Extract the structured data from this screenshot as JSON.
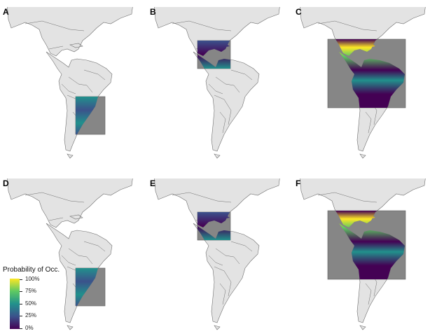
{
  "panels": [
    {
      "label": "A",
      "region": "southern-south-america"
    },
    {
      "label": "B",
      "region": "central-america"
    },
    {
      "label": "C",
      "region": "northern-south-america"
    },
    {
      "label": "D",
      "region": "southern-south-america"
    },
    {
      "label": "E",
      "region": "central-america"
    },
    {
      "label": "F",
      "region": "northern-south-america"
    }
  ],
  "legend": {
    "title": "Probability of Occ.",
    "ticks": [
      "100%",
      "75%",
      "50%",
      "25%",
      "0%"
    ],
    "colors": [
      "#440154",
      "#3b528b",
      "#21918c",
      "#5ec962",
      "#fde725"
    ]
  },
  "colors": {
    "land": "#e3e3e3",
    "border": "#6e6e6e",
    "box": "#808080"
  }
}
